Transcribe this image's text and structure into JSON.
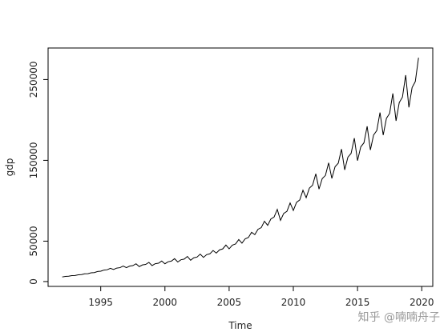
{
  "chart_data": {
    "type": "line",
    "xlabel": "Time",
    "ylabel": "gdp",
    "color": "#000000",
    "watermark": "知乎 @喃喃舟子",
    "x": [
      1992,
      1992.25,
      1992.5,
      1992.75,
      1993,
      1993.25,
      1993.5,
      1993.75,
      1994,
      1994.25,
      1994.5,
      1994.75,
      1995,
      1995.25,
      1995.5,
      1995.75,
      1996,
      1996.25,
      1996.5,
      1996.75,
      1997,
      1997.25,
      1997.5,
      1997.75,
      1998,
      1998.25,
      1998.5,
      1998.75,
      1999,
      1999.25,
      1999.5,
      1999.75,
      2000,
      2000.25,
      2000.5,
      2000.75,
      2001,
      2001.25,
      2001.5,
      2001.75,
      2002,
      2002.25,
      2002.5,
      2002.75,
      2003,
      2003.25,
      2003.5,
      2003.75,
      2004,
      2004.25,
      2004.5,
      2004.75,
      2005,
      2005.25,
      2005.5,
      2005.75,
      2006,
      2006.25,
      2006.5,
      2006.75,
      2007,
      2007.25,
      2007.5,
      2007.75,
      2008,
      2008.25,
      2008.5,
      2008.75,
      2009,
      2009.25,
      2009.5,
      2009.75,
      2010,
      2010.25,
      2010.5,
      2010.75,
      2011,
      2011.25,
      2011.5,
      2011.75,
      2012,
      2012.25,
      2012.5,
      2012.75,
      2013,
      2013.25,
      2013.5,
      2013.75,
      2014,
      2014.25,
      2014.5,
      2014.75,
      2015,
      2015.25,
      2015.5,
      2015.75,
      2016,
      2016.25,
      2016.5,
      2016.75,
      2017,
      2017.25,
      2017.5,
      2017.75,
      2018,
      2018.25,
      2018.5,
      2018.75,
      2019,
      2019.25,
      2019.5,
      2019.75
    ],
    "values": [
      5700,
      6400,
      6600,
      7300,
      7500,
      8300,
      8600,
      9600,
      9700,
      10800,
      11100,
      12400,
      12800,
      14200,
      14600,
      16400,
      15000,
      16700,
      17200,
      19200,
      17200,
      19100,
      19700,
      22000,
      18500,
      20600,
      21200,
      23700,
      19800,
      22100,
      22700,
      25400,
      22000,
      24500,
      25300,
      28300,
      24200,
      27000,
      27800,
      31100,
      26400,
      29400,
      30300,
      33900,
      29900,
      33300,
      34300,
      38400,
      35200,
      39200,
      40400,
      45200,
      40500,
      45100,
      46500,
      52000,
      47500,
      52900,
      54500,
      61000,
      58100,
      64700,
      66700,
      74600,
      69500,
      77400,
      79800,
      89300,
      75700,
      84300,
      86900,
      97200,
      88000,
      98000,
      101000,
      113000,
      103800,
      115600,
      119200,
      133300,
      114400,
      127400,
      131300,
      146900,
      127600,
      142100,
      146500,
      163900,
      138200,
      153900,
      158600,
      177400,
      149600,
      166600,
      171700,
      192100,
      162800,
      181300,
      186900,
      209100,
      181300,
      201900,
      208100,
      232800,
      198900,
      221500,
      228300,
      255400,
      215600,
      240100,
      247500,
      276900
    ],
    "xlim": [
      1990.9,
      2020.86
    ],
    "ylim": [
      -6000,
      289000
    ],
    "xticks": [
      1995,
      2000,
      2005,
      2010,
      2015,
      2020
    ],
    "yticks": [
      0,
      50000,
      150000,
      250000
    ]
  }
}
